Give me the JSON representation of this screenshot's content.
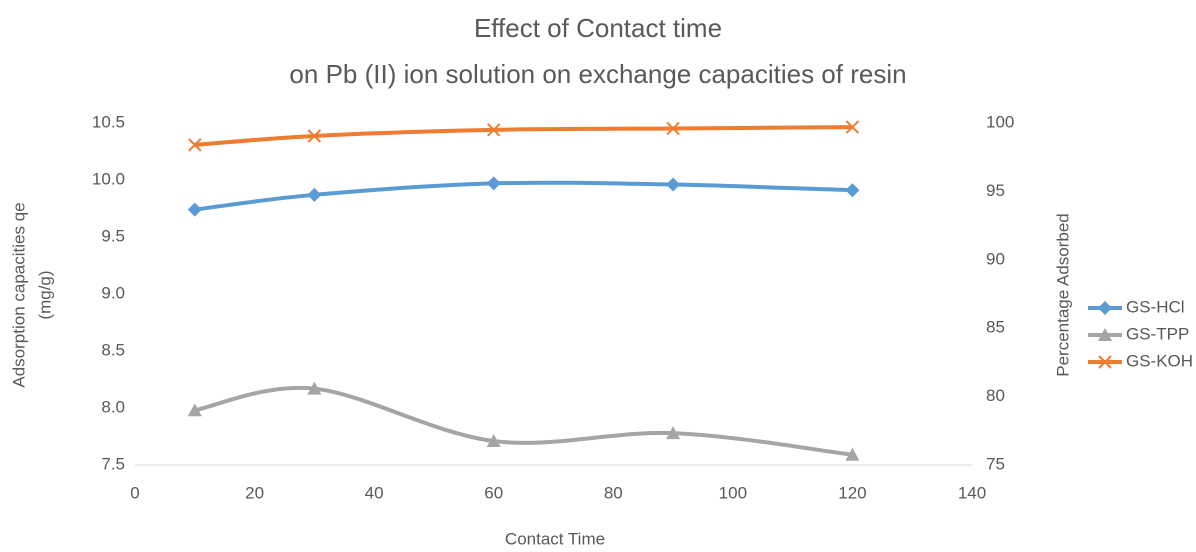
{
  "chart_data": {
    "type": "line",
    "title": [
      "Effect of Contact time",
      "on Pb (II) ion solution on exchange capacities of resin"
    ],
    "x_label": "Contact Time",
    "y_label": [
      "Adsorption capacities qe",
      "(mg/g)"
    ],
    "y2_label": "Percentage Adsorbed",
    "x": [
      10,
      30,
      60,
      90,
      120
    ],
    "xlim": [
      0,
      140
    ],
    "xticks": [
      0,
      20,
      40,
      60,
      80,
      100,
      120,
      140
    ],
    "ylim": [
      7.5,
      10.5
    ],
    "yticks": [
      7.5,
      {
        "value": 8,
        "label": "8.0"
      },
      8.5,
      {
        "value": 9,
        "label": "9.0"
      },
      9.5,
      {
        "value": 10,
        "label": "10.0"
      },
      10.5
    ],
    "y2lim": [
      75,
      100
    ],
    "y2ticks": [
      75,
      80,
      85,
      90,
      95,
      100
    ],
    "legend": "right",
    "series": [
      {
        "name": "GS-HCl",
        "color": "#5b9bd5",
        "marker": "diamond",
        "values": [
          9.74,
          9.87,
          9.97,
          9.96,
          9.91
        ]
      },
      {
        "name": "GS-TPP",
        "color": "#a5a5a5",
        "marker": "triangle",
        "values": [
          7.98,
          8.17,
          7.71,
          7.78,
          7.59
        ]
      },
      {
        "name": "GS-KOH",
        "color": "#ed7d31",
        "marker": "x",
        "axis": "y2",
        "values": [
          98.4,
          99.05,
          99.5,
          99.6,
          99.7
        ]
      }
    ]
  }
}
